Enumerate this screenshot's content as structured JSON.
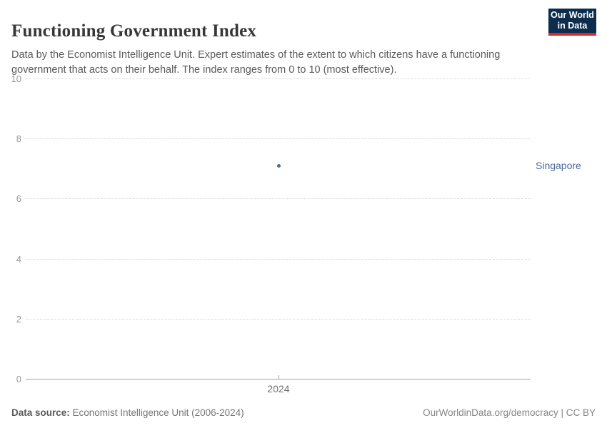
{
  "header": {
    "title": "Functioning Government Index",
    "subtitle": "Data by the Economist Intelligence Unit. Expert estimates of the extent to which citizens have a functioning government that acts on their behalf. The index ranges from 0 to 10 (most effective).",
    "logo": {
      "line1": "Our World",
      "line2": "in Data",
      "bg_color": "#0C2D4E",
      "accent_color": "#D7282F"
    }
  },
  "chart_data": {
    "type": "scatter",
    "title": "Functioning Government Index",
    "xlabel": "",
    "ylabel": "",
    "ylim": [
      0,
      10
    ],
    "yticks": [
      0,
      2,
      4,
      6,
      8,
      10
    ],
    "xticks": [
      2024
    ],
    "grid": "horizontal-dashed",
    "legend_position": "right-of-point",
    "series": [
      {
        "name": "Singapore",
        "x": [
          2024
        ],
        "values": [
          7.1
        ],
        "color": "#4C6A9C"
      }
    ]
  },
  "footer": {
    "source_label": "Data source:",
    "source_value": " Economist Intelligence Unit (2006-2024)",
    "attribution": "OurWorldinData.org/democracy | CC BY"
  }
}
